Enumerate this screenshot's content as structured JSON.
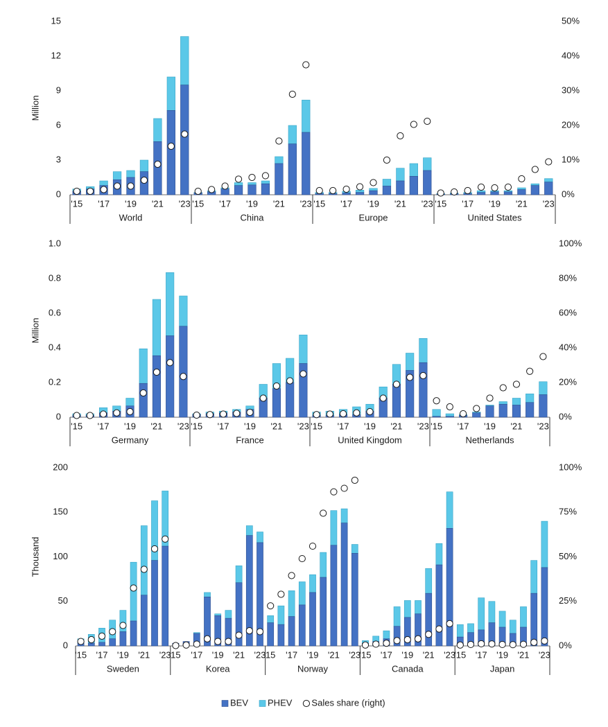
{
  "chart_data": {
    "type": "bar",
    "legend": {
      "placement": "bottom-center",
      "items": [
        {
          "label": "BEV",
          "symbol": "square",
          "color": "#4472C4"
        },
        {
          "label": "PHEV",
          "symbol": "square",
          "color": "#5BC8E8"
        },
        {
          "label": "Sales share (right)",
          "symbol": "circle"
        }
      ]
    },
    "colors": {
      "bev": "#4472C4",
      "phev": "#5BC8E8",
      "bev_edge": "#2F4F8F",
      "phev_edge": "#3AA5C7"
    },
    "panels": [
      {
        "ylabel": "Million",
        "ylim": [
          0,
          15
        ],
        "y_ticks": [
          0,
          3,
          6,
          9,
          12,
          15
        ],
        "y_tick_labels": [
          "0",
          "3",
          "6",
          "9",
          "12",
          "15"
        ],
        "y2lim": [
          0,
          50
        ],
        "y2_ticks": [
          0,
          10,
          20,
          30,
          40,
          50
        ],
        "y2_tick_labels": [
          "0%",
          "10%",
          "20%",
          "30%",
          "40%",
          "50%"
        ],
        "groups": [
          {
            "label": "World",
            "x_labels": [
              "'15",
              "",
              "'17",
              "",
              "'19",
              "",
              "'21",
              "",
              "'23"
            ],
            "bev": [
              0.3,
              0.5,
              0.8,
              1.3,
              1.5,
              2.0,
              4.6,
              7.3,
              9.5
            ],
            "phev": [
              0.2,
              0.2,
              0.4,
              0.7,
              0.6,
              1.0,
              2.0,
              2.9,
              4.2
            ],
            "share": [
              1,
              1,
              1.5,
              2.5,
              2.5,
              4.2,
              8.8,
              14,
              17.5
            ]
          },
          {
            "label": "China",
            "x_labels": [
              "'15",
              "",
              "'17",
              "",
              "'19",
              "",
              "'21",
              "",
              "'23"
            ],
            "bev": [
              0.15,
              0.25,
              0.5,
              0.8,
              0.85,
              0.95,
              2.7,
              4.4,
              5.4
            ],
            "phev": [
              0.05,
              0.1,
              0.1,
              0.25,
              0.2,
              0.25,
              0.6,
              1.6,
              2.8
            ],
            "share": [
              1,
              1.5,
              2.5,
              4.5,
              5,
              5.5,
              15.5,
              29,
              37.5
            ]
          },
          {
            "label": "Europe",
            "x_labels": [
              "'15",
              "",
              "'17",
              "",
              "'19",
              "",
              "'21",
              "",
              "'23"
            ],
            "bev": [
              0.1,
              0.1,
              0.15,
              0.2,
              0.35,
              0.75,
              1.2,
              1.6,
              2.1
            ],
            "phev": [
              0.1,
              0.1,
              0.15,
              0.2,
              0.2,
              0.6,
              1.1,
              1.1,
              1.1
            ],
            "share": [
              1.2,
              1.2,
              1.6,
              2.3,
              3.5,
              10,
              17,
              20.3,
              21.2
            ]
          },
          {
            "label": "United States",
            "x_labels": [
              "'15",
              "",
              "'17",
              "",
              "'19",
              "",
              "'21",
              "",
              "'23"
            ],
            "bev": [
              0.05,
              0.08,
              0.1,
              0.2,
              0.25,
              0.25,
              0.45,
              0.8,
              1.1
            ],
            "phev": [
              0.05,
              0.07,
              0.1,
              0.15,
              0.1,
              0.1,
              0.15,
              0.15,
              0.3
            ],
            "share": [
              0.5,
              0.8,
              1.2,
              2.2,
              2.0,
              2.2,
              4.6,
              7.3,
              9.5
            ]
          }
        ]
      },
      {
        "ylabel": "Million",
        "ylim": [
          0,
          1.0
        ],
        "y_ticks": [
          0,
          0.2,
          0.4,
          0.6,
          0.8,
          1.0
        ],
        "y_tick_labels": [
          "0",
          "0.2",
          "0.4",
          "0.6",
          "0.8",
          "1.0"
        ],
        "y2lim": [
          0,
          100
        ],
        "y2_ticks": [
          0,
          20,
          40,
          60,
          80,
          100
        ],
        "y2_tick_labels": [
          "0%",
          "20%",
          "40%",
          "60%",
          "80%",
          "100%"
        ],
        "groups": [
          {
            "label": "Germany",
            "x_labels": [
              "'15",
              "",
              "'17",
              "",
              "'19",
              "",
              "'21",
              "",
              "'23"
            ],
            "bev": [
              0.01,
              0.01,
              0.025,
              0.035,
              0.065,
              0.195,
              0.355,
              0.47,
              0.525
            ],
            "phev": [
              0.01,
              0.01,
              0.03,
              0.03,
              0.045,
              0.2,
              0.325,
              0.365,
              0.175
            ],
            "share": [
              1,
              1,
              1.8,
              2.5,
              3.2,
              14,
              26,
              31.5,
              23.5
            ]
          },
          {
            "label": "France",
            "x_labels": [
              "'15",
              "",
              "'17",
              "",
              "'19",
              "",
              "'21",
              "",
              "'23"
            ],
            "bev": [
              0.015,
              0.02,
              0.025,
              0.03,
              0.045,
              0.11,
              0.165,
              0.2,
              0.31
            ],
            "phev": [
              0.005,
              0.01,
              0.01,
              0.015,
              0.02,
              0.08,
              0.145,
              0.14,
              0.165
            ],
            "share": [
              1.2,
              1.5,
              1.8,
              2.2,
              2.8,
              11,
              18,
              21,
              25
            ]
          },
          {
            "label": "United Kingdom",
            "x_labels": [
              "'15",
              "",
              "'17",
              "",
              "'19",
              "",
              "'21",
              "",
              "'23"
            ],
            "bev": [
              0.01,
              0.01,
              0.015,
              0.015,
              0.035,
              0.11,
              0.19,
              0.27,
              0.315
            ],
            "phev": [
              0.02,
              0.025,
              0.03,
              0.045,
              0.04,
              0.065,
              0.115,
              0.1,
              0.14
            ],
            "share": [
              1.5,
              1.8,
              2,
              2.5,
              3.2,
              11,
              19,
              23,
              24
            ]
          },
          {
            "label": "Netherlands",
            "x_labels": [
              "'15",
              "",
              "'17",
              "",
              "'19",
              "",
              "'21",
              "",
              "'23"
            ],
            "bev": [
              0.005,
              0.005,
              0.01,
              0.025,
              0.065,
              0.075,
              0.07,
              0.085,
              0.13
            ],
            "phev": [
              0.04,
              0.015,
              0.005,
              0.005,
              0.005,
              0.015,
              0.04,
              0.05,
              0.075
            ],
            "share": [
              9.5,
              6,
              2,
              5,
              11,
              17,
              19,
              26.5,
              35
            ]
          }
        ]
      },
      {
        "ylabel": "Thousand",
        "ylim": [
          0,
          200
        ],
        "y_ticks": [
          0,
          50,
          100,
          150,
          200
        ],
        "y_tick_labels": [
          "0",
          "50",
          "100",
          "150",
          "200"
        ],
        "y2lim": [
          0,
          100
        ],
        "y2_ticks": [
          0,
          25,
          50,
          75,
          100
        ],
        "y2_tick_labels": [
          "0%",
          "25%",
          "50%",
          "75%",
          "100%"
        ],
        "groups": [
          {
            "label": "Sweden",
            "x_labels": [
              "'15",
              "",
              "'17",
              "",
              "'19",
              "",
              "'21",
              "",
              "'23"
            ],
            "bev": [
              3,
              3,
              4,
              8,
              16,
              28,
              57,
              96,
              112
            ],
            "phev": [
              5,
              10,
              16,
              21,
              24,
              66,
              78,
              67,
              62
            ],
            "share": [
              2.5,
              3.5,
              5.5,
              8,
              11.5,
              32.5,
              43,
              54.5,
              60
            ]
          },
          {
            "label": "Korea",
            "x_labels": [
              "15",
              "",
              "'17",
              "",
              "'19",
              "",
              "'21",
              "",
              "'23"
            ],
            "bev": [
              3,
              5,
              14,
              55,
              34,
              31,
              71,
              124,
              116
            ],
            "phev": [
              0,
              0,
              1,
              5,
              2,
              9,
              19,
              11,
              12
            ],
            "share": [
              0.2,
              0.5,
              1,
              4,
              2.5,
              2.5,
              6,
              8.5,
              8
            ]
          },
          {
            "label": "Norway",
            "x_labels": [
              "15",
              "",
              "'17",
              "",
              "'19",
              "",
              "'21",
              "",
              "'23"
            ],
            "bev": [
              26,
              24,
              33,
              46,
              60,
              77,
              113,
              138,
              104
            ],
            "phev": [
              8,
              21,
              29,
              26,
              20,
              28,
              39,
              16,
              10
            ],
            "share": [
              22.5,
              29,
              39.5,
              49,
              56,
              74.5,
              86.5,
              88.5,
              93
            ]
          },
          {
            "label": "Canada",
            "x_labels": [
              "'15",
              "",
              "'17",
              "",
              "'19",
              "",
              "'21",
              "",
              "'23"
            ],
            "bev": [
              3,
              5,
              8,
              22,
              32,
              36,
              59,
              91,
              132
            ],
            "phev": [
              3,
              6,
              9,
              22,
              19,
              15,
              28,
              24,
              41
            ],
            "share": [
              0.5,
              1,
              1.5,
              3,
              3.5,
              4,
              6.5,
              9.5,
              12.5
            ]
          },
          {
            "label": "Japan",
            "x_labels": [
              "'15",
              "",
              "'17",
              "",
              "'19",
              "",
              "'21",
              "",
              "'23"
            ],
            "bev": [
              10,
              15,
              18,
              26,
              21,
              14,
              21,
              59,
              88
            ],
            "phev": [
              14,
              10,
              36,
              24,
              18,
              15,
              23,
              37,
              52
            ],
            "share": [
              0.5,
              0.8,
              1.2,
              1.1,
              0.8,
              0.7,
              0.9,
              2,
              2.8
            ]
          }
        ]
      }
    ]
  }
}
